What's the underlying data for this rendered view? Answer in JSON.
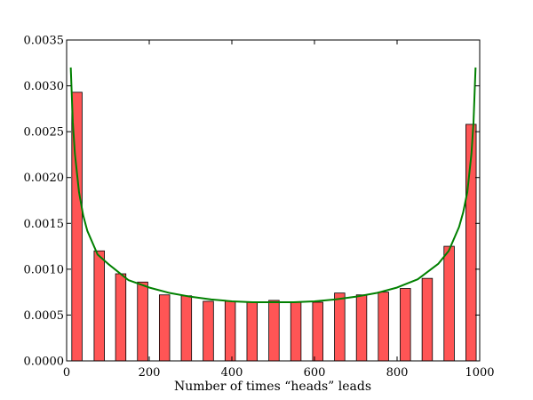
{
  "chart_data": {
    "type": "bar",
    "title": "",
    "xlabel": "Number of times “heads” leads",
    "ylabel": "",
    "xlim": [
      0,
      1000
    ],
    "ylim": [
      0,
      0.0035
    ],
    "grid": false,
    "x_ticks": [
      "0",
      "200",
      "400",
      "600",
      "800",
      "1000"
    ],
    "y_ticks": [
      "0.0000",
      "0.0005",
      "0.0010",
      "0.0015",
      "0.0020",
      "0.0025",
      "0.0030",
      "0.0035"
    ],
    "colors": {
      "bars": "#ff5555",
      "bar_edge": "#000000",
      "curve": "#008000"
    },
    "bars": {
      "x": [
        25,
        79,
        131,
        184,
        237,
        290,
        343,
        396,
        449,
        502,
        555,
        608,
        661,
        714,
        767,
        820,
        873,
        926,
        979
      ],
      "values": [
        0.00293,
        0.0012,
        0.00095,
        0.00086,
        0.00072,
        0.00071,
        0.00065,
        0.00065,
        0.00064,
        0.00066,
        0.00064,
        0.00064,
        0.00074,
        0.00072,
        0.00075,
        0.00079,
        0.0009,
        0.00125,
        0.00258
      ]
    },
    "curve": {
      "x": [
        10,
        15,
        20,
        30,
        40,
        50,
        75,
        100,
        150,
        200,
        250,
        300,
        350,
        400,
        450,
        500,
        550,
        600,
        650,
        700,
        750,
        800,
        850,
        900,
        925,
        950,
        960,
        970,
        980,
        985,
        990
      ],
      "values": [
        0.0032,
        0.0026,
        0.00226,
        0.00184,
        0.00159,
        0.00142,
        0.00116,
        0.00106,
        0.00088,
        0.0008,
        0.00074,
        0.0007,
        0.00067,
        0.00065,
        0.00064,
        0.00064,
        0.00064,
        0.00065,
        0.00067,
        0.0007,
        0.00074,
        0.0008,
        0.00089,
        0.00106,
        0.0012,
        0.00146,
        0.00162,
        0.00184,
        0.00226,
        0.0026,
        0.0032
      ]
    }
  }
}
